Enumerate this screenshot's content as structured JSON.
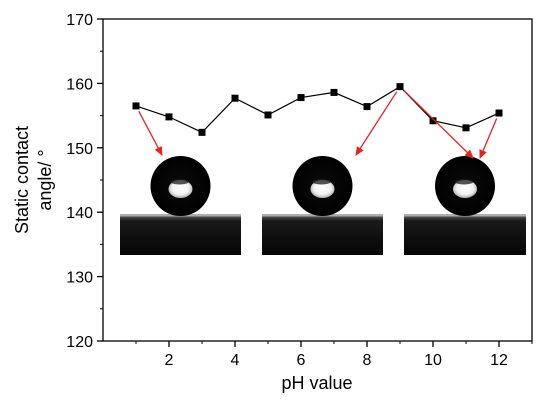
{
  "chart_data": {
    "type": "line",
    "xlabel": "pH value",
    "ylabel_lines": [
      "Static contact",
      "angle/ °"
    ],
    "xlim": [
      0,
      13
    ],
    "ylim": [
      120,
      170
    ],
    "xticks": [
      2,
      4,
      6,
      8,
      10,
      12
    ],
    "yticks": [
      120,
      130,
      140,
      150,
      160,
      170
    ],
    "series": [
      {
        "marker": "square",
        "color": "#000000",
        "x": [
          1,
          2,
          3,
          4,
          5,
          6,
          7,
          8,
          9,
          10,
          11,
          12
        ],
        "y": [
          156.5,
          154.8,
          152.4,
          157.7,
          155.1,
          157.8,
          158.6,
          156.4,
          159.5,
          154.2,
          153.1,
          155.4
        ]
      }
    ],
    "annotations": [
      {
        "type": "arrow",
        "color": "#e8231d",
        "from_point": 1,
        "to_image": 1
      },
      {
        "type": "arrow",
        "color": "#e8231d",
        "from_point": 9,
        "to_image": 2
      },
      {
        "type": "arrow",
        "color": "#e8231d",
        "from_point": 9,
        "to_image": 3
      },
      {
        "type": "arrow",
        "color": "#e8231d",
        "from_point": 12,
        "to_image": 3
      }
    ],
    "inset_images": [
      {
        "name": "droplet-photo",
        "index": 1
      },
      {
        "name": "droplet-photo",
        "index": 2
      },
      {
        "name": "droplet-photo",
        "index": 3
      }
    ]
  }
}
